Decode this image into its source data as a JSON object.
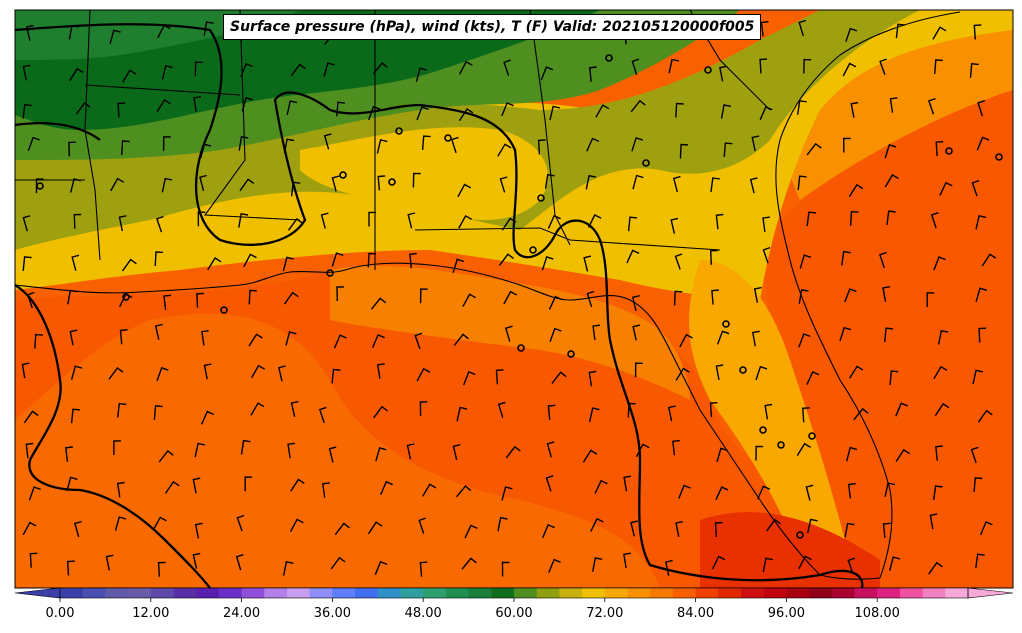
{
  "title": "Surface pressure (hPa), wind (kts), T (F) Valid: 202105120000f005",
  "colorbar": {
    "tick_labels": [
      "0.00",
      "12.00",
      "24.00",
      "36.00",
      "48.00",
      "60.00",
      "72.00",
      "84.00",
      "96.00",
      "108.00"
    ],
    "colors": [
      "#3b3fa8",
      "#4b4fb0",
      "#5e5aa8",
      "#6a5ba8",
      "#5e49a8",
      "#5a2fa6",
      "#5a1fb0",
      "#6a2fc8",
      "#8f4fd8",
      "#b37fe8",
      "#c89ff0",
      "#8f8ff8",
      "#5f7ff8",
      "#3f6ff0",
      "#2f8fc8",
      "#2fa0a0",
      "#2f9f6f",
      "#1f8f4f",
      "#1a7f3a",
      "#0f6f1f",
      "#4f8f1f",
      "#8f9f0f",
      "#c8b00f",
      "#f0c000",
      "#f8a800",
      "#f89000",
      "#f87800",
      "#f86000",
      "#f04000",
      "#e02800",
      "#d01010",
      "#c00010",
      "#a80010",
      "#900018",
      "#a80030",
      "#c81060",
      "#e02080",
      "#f050a0",
      "#f080c0",
      "#f8a8d8"
    ]
  },
  "map_fill_colors": {
    "dark_green": "#0a6a1a",
    "green": "#1f7f2f",
    "olive_green": "#4f8f1f",
    "olive": "#9fa00f",
    "yellow": "#f0c000",
    "light_orange": "#f8a800",
    "orange": "#f87800",
    "deep_orange": "#f85800",
    "red_orange": "#e83000"
  }
}
